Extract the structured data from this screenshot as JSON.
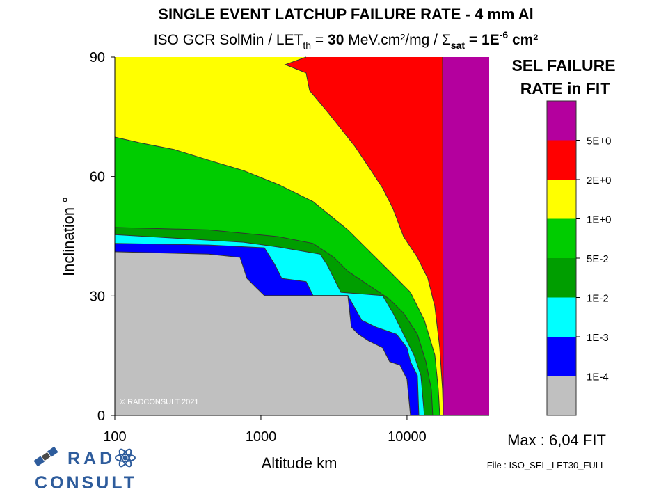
{
  "chart_data": {
    "type": "contour",
    "title": "SINGLE EVENT LATCHUP FAILURE RATE - 4 mm Al",
    "subtitle": [
      "ISO GCR SolMin / LET",
      "th",
      " = ",
      "30",
      " MeV.cm²/mg / ",
      "Σ",
      "sat",
      " = 1E",
      "-6",
      " cm²"
    ],
    "x_label": "Altitude km",
    "y_label": "Inclination °",
    "xscale": "log",
    "xlim": [
      100,
      36500
    ],
    "xticks": [
      100,
      1000,
      10000
    ],
    "ylim": [
      0,
      90
    ],
    "yticks": [
      0,
      30,
      60,
      90
    ],
    "background_color": "#b4009e",
    "contours": [
      {
        "color": "#ff0000",
        "x": [
          17500,
          17700
        ],
        "y": [
          90,
          0
        ]
      },
      {
        "color": "#ffff00",
        "x": [
          2040,
          1468,
          2040,
          2154,
          2833,
          3530,
          4395,
          5470,
          6810,
          8030,
          9470,
          11780,
          13890,
          15500,
          16750,
          17500,
          17700
        ],
        "y": [
          90,
          88.1,
          86.0,
          81.6,
          76.4,
          72.0,
          67.6,
          62.4,
          57.1,
          51.9,
          44.9,
          39.7,
          34.4,
          27.4,
          17.0,
          6.5,
          0
        ]
      },
      {
        "color": "#00cc00",
        "x": [
          100,
          147,
          254,
          439,
          760,
          1315,
          2275,
          3937,
          5470,
          7600,
          10560,
          13150,
          15500,
          16380,
          16750
        ],
        "y": [
          69.9,
          68.5,
          66.8,
          64.1,
          61.5,
          58.0,
          53.7,
          46.6,
          41.4,
          36.2,
          30.9,
          23.9,
          15.2,
          6.5,
          0
        ]
      },
      {
        "color": "#009e00",
        "x": [
          100,
          439,
          1315,
          2275,
          3162,
          3937,
          5470,
          7600,
          9470,
          11780,
          13460,
          14680,
          15000
        ],
        "y": [
          47.2,
          46.6,
          44.9,
          43.2,
          39.7,
          36.2,
          32.7,
          29.2,
          25.7,
          20.4,
          13.5,
          6.5,
          0
        ]
      },
      {
        "color": "#00ffff",
        "x": [
          100,
          760,
          1315,
          2540,
          2833,
          3162,
          3530,
          6810,
          8030,
          9470,
          11160,
          12450,
          13150
        ],
        "y": [
          45.4,
          43.5,
          42.3,
          40.5,
          37.9,
          34.4,
          30.9,
          30.1,
          25.7,
          20.4,
          15.2,
          10.0,
          0
        ]
      },
      {
        "color": "#0000ff",
        "x": [
          100,
          439,
          1056,
          1245,
          1390,
          2040,
          2275,
          3937,
          4900,
          6110,
          7200,
          8480,
          10000,
          10560,
          11780,
          12050
        ],
        "y": [
          43.2,
          42.8,
          42.1,
          37.9,
          34.4,
          33.6,
          30.1,
          30.1,
          23.9,
          22.2,
          21.3,
          20.4,
          17.0,
          13.5,
          10.0,
          0
        ]
      },
      {
        "color": "#c0c0c0",
        "x": [
          100,
          439,
          720,
          803,
          946,
          1056,
          3937,
          4160,
          4642,
          5470,
          6810,
          7600,
          8960,
          10000,
          10560
        ],
        "y": [
          41.1,
          40.5,
          39.7,
          34.4,
          31.8,
          30.1,
          30.1,
          22.2,
          20.4,
          18.7,
          17.0,
          13.5,
          12.6,
          9.1,
          0
        ]
      }
    ],
    "colorbar": {
      "title": [
        "SEL FAILURE",
        "RATE in FIT"
      ],
      "colors": [
        "#c0c0c0",
        "#0000ff",
        "#00ffff",
        "#009e00",
        "#00cc00",
        "#ffff00",
        "#ff0000",
        "#b4009e"
      ],
      "ticks": [
        {
          "value": 0.0001,
          "label": "1E-4"
        },
        {
          "value": 0.001,
          "label": "1E-3"
        },
        {
          "value": 0.01,
          "label": "1E-2"
        },
        {
          "value": 0.05,
          "label": "5E-2"
        },
        {
          "value": 1,
          "label": "1E+0"
        },
        {
          "value": 2,
          "label": "2E+0"
        },
        {
          "value": 5,
          "label": "5E+0"
        }
      ]
    },
    "max_label": "Max : 6,04 FIT",
    "file_label": "File : ISO_SEL_LET30_FULL",
    "copyright": "© RADCONSULT 2021",
    "logo": [
      "RAD",
      "CONSULT"
    ]
  }
}
